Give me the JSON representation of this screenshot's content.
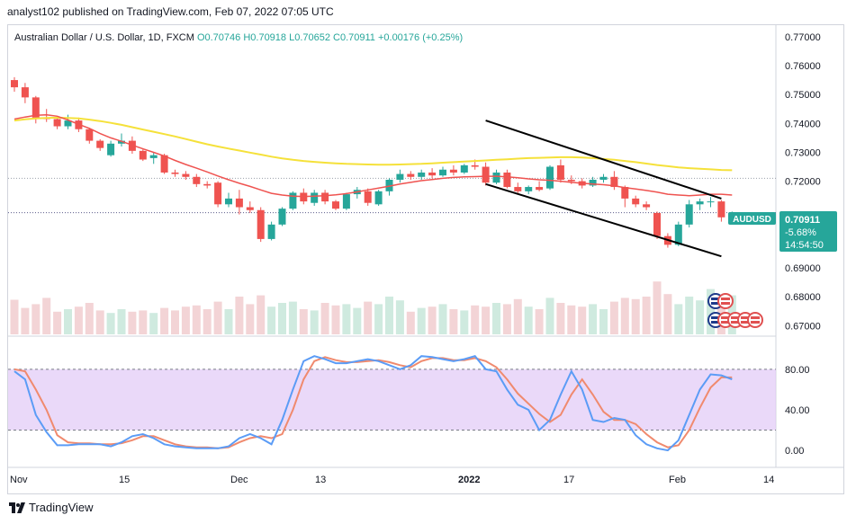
{
  "header": {
    "published": "analyst102 published on TradingView.com, Feb 07, 2022 07:05 UTC",
    "symbol": "Australian Dollar / U.S. Dollar, 1D, FXCM",
    "ohlc": "O0.70746  H0.70918  L0.70652  C0.70911  +0.00176  (+0.25%)"
  },
  "price_label": {
    "ticker": "AUDUSD",
    "price": "0.70911",
    "change": "-5.68%",
    "countdown": "14:54:50"
  },
  "footer": {
    "brand": "TradingView"
  },
  "colors": {
    "up": "#26a69a",
    "down": "#ef5350",
    "ma_fast": "#ef5350",
    "ma_slow": "#f5e13a",
    "stoch_k": "#5b9cf6",
    "stoch_d": "#f08a6e",
    "band": "#e1c9f7"
  },
  "chart_data": [
    {
      "type": "candlestick",
      "title": "",
      "x_ticks": [
        "Nov",
        "15",
        "Dec",
        "13",
        "2022",
        "17",
        "Feb",
        "14"
      ],
      "y_ticks": [
        "0.77000",
        "0.76000",
        "0.75000",
        "0.74000",
        "0.73000",
        "0.72000",
        "0.69000",
        "0.68000",
        "0.67000"
      ],
      "ylim": [
        0.667,
        0.774
      ],
      "candles": [
        [
          0.755,
          0.756,
          0.751,
          0.7525
        ],
        [
          0.7525,
          0.754,
          0.747,
          0.749
        ],
        [
          0.749,
          0.7495,
          0.74,
          0.742
        ],
        [
          0.742,
          0.745,
          0.7405,
          0.7415
        ],
        [
          0.7415,
          0.742,
          0.738,
          0.739
        ],
        [
          0.739,
          0.743,
          0.738,
          0.741
        ],
        [
          0.741,
          0.742,
          0.737,
          0.738
        ],
        [
          0.738,
          0.7385,
          0.733,
          0.734
        ],
        [
          0.734,
          0.7345,
          0.7305,
          0.7315
        ],
        [
          0.729,
          0.734,
          0.7285,
          0.733
        ],
        [
          0.733,
          0.7365,
          0.732,
          0.734
        ],
        [
          0.734,
          0.7355,
          0.7295,
          0.7305
        ],
        [
          0.7305,
          0.731,
          0.727,
          0.7275
        ],
        [
          0.728,
          0.73,
          0.726,
          0.729
        ],
        [
          0.729,
          0.7295,
          0.7225,
          0.723
        ],
        [
          0.723,
          0.724,
          0.7215,
          0.7225
        ],
        [
          0.7225,
          0.7235,
          0.7205,
          0.7215
        ],
        [
          0.7215,
          0.7225,
          0.718,
          0.719
        ],
        [
          0.719,
          0.72,
          0.7175,
          0.7185
        ],
        [
          0.7195,
          0.72,
          0.711,
          0.712
        ],
        [
          0.712,
          0.716,
          0.711,
          0.714
        ],
        [
          0.714,
          0.717,
          0.7085,
          0.711
        ],
        [
          0.711,
          0.713,
          0.709,
          0.71
        ],
        [
          0.71,
          0.711,
          0.699,
          0.7
        ],
        [
          0.7,
          0.706,
          0.6995,
          0.705
        ],
        [
          0.705,
          0.711,
          0.7045,
          0.7105
        ],
        [
          0.7105,
          0.7165,
          0.71,
          0.716
        ],
        [
          0.716,
          0.7175,
          0.712,
          0.713
        ],
        [
          0.7125,
          0.717,
          0.7115,
          0.716
        ],
        [
          0.716,
          0.717,
          0.712,
          0.713
        ],
        [
          0.713,
          0.7135,
          0.71,
          0.7105
        ],
        [
          0.7105,
          0.716,
          0.71,
          0.7155
        ],
        [
          0.7155,
          0.718,
          0.714,
          0.717
        ],
        [
          0.7165,
          0.7175,
          0.7115,
          0.7125
        ],
        [
          0.712,
          0.717,
          0.7115,
          0.7165
        ],
        [
          0.7165,
          0.721,
          0.715,
          0.7205
        ],
        [
          0.7205,
          0.724,
          0.7195,
          0.7225
        ],
        [
          0.7225,
          0.7235,
          0.7205,
          0.7215
        ],
        [
          0.7215,
          0.724,
          0.7205,
          0.723
        ],
        [
          0.723,
          0.7245,
          0.721,
          0.722
        ],
        [
          0.722,
          0.725,
          0.7215,
          0.724
        ],
        [
          0.724,
          0.7255,
          0.722,
          0.723
        ],
        [
          0.723,
          0.726,
          0.7225,
          0.7255
        ],
        [
          0.7255,
          0.7275,
          0.724,
          0.725
        ],
        [
          0.725,
          0.7265,
          0.7185,
          0.7195
        ],
        [
          0.7195,
          0.724,
          0.719,
          0.723
        ],
        [
          0.723,
          0.724,
          0.7175,
          0.718
        ],
        [
          0.718,
          0.7195,
          0.7155,
          0.7165
        ],
        [
          0.7165,
          0.7185,
          0.7155,
          0.718
        ],
        [
          0.718,
          0.72,
          0.7165,
          0.717
        ],
        [
          0.7175,
          0.7255,
          0.717,
          0.725
        ],
        [
          0.7255,
          0.7275,
          0.7195,
          0.7205
        ],
        [
          0.7205,
          0.722,
          0.719,
          0.72
        ],
        [
          0.72,
          0.721,
          0.7175,
          0.7185
        ],
        [
          0.7185,
          0.7215,
          0.718,
          0.7205
        ],
        [
          0.7205,
          0.7225,
          0.7195,
          0.7215
        ],
        [
          0.7215,
          0.7235,
          0.717,
          0.718
        ],
        [
          0.718,
          0.7185,
          0.711,
          0.714
        ],
        [
          0.714,
          0.715,
          0.711,
          0.712
        ],
        [
          0.712,
          0.713,
          0.71,
          0.711
        ],
        [
          0.709,
          0.7095,
          0.7,
          0.701
        ],
        [
          0.701,
          0.702,
          0.697,
          0.698
        ],
        [
          0.698,
          0.706,
          0.6975,
          0.705
        ],
        [
          0.705,
          0.7135,
          0.704,
          0.712
        ],
        [
          0.712,
          0.714,
          0.71,
          0.713
        ],
        [
          0.713,
          0.7145,
          0.711,
          0.713
        ],
        [
          0.713,
          0.7135,
          0.706,
          0.7075
        ],
        [
          0.7075,
          0.7095,
          0.7065,
          0.7091
        ]
      ],
      "volume": [
        55,
        42,
        48,
        58,
        36,
        40,
        44,
        50,
        38,
        34,
        40,
        36,
        38,
        34,
        42,
        38,
        44,
        46,
        40,
        52,
        40,
        60,
        48,
        62,
        44,
        50,
        52,
        40,
        38,
        50,
        46,
        48,
        42,
        52,
        48,
        60,
        54,
        36,
        42,
        44,
        48,
        40,
        38,
        46,
        44,
        50,
        48,
        56,
        44,
        40,
        58,
        50,
        46,
        44,
        48,
        40,
        52,
        58,
        56,
        60,
        84,
        64,
        48,
        60,
        54,
        72,
        58,
        62
      ],
      "ma_fast": [
        0.7415,
        0.7422,
        0.7428,
        0.743,
        0.7425,
        0.7412,
        0.7397,
        0.7383,
        0.7365,
        0.735,
        0.7338,
        0.7325,
        0.7312,
        0.73,
        0.7287,
        0.7272,
        0.7258,
        0.7245,
        0.7232,
        0.7218,
        0.7205,
        0.7193,
        0.7182,
        0.717,
        0.7158,
        0.7152,
        0.7148,
        0.7147,
        0.7148,
        0.715,
        0.7153,
        0.7157,
        0.7163,
        0.717,
        0.7176,
        0.7183,
        0.719,
        0.7196,
        0.7202,
        0.7206,
        0.721,
        0.7213,
        0.7215,
        0.7216,
        0.7217,
        0.7217,
        0.7215,
        0.7212,
        0.7208,
        0.7205,
        0.7203,
        0.72,
        0.7196,
        0.7193,
        0.719,
        0.7188,
        0.7184,
        0.7178,
        0.7173,
        0.7168,
        0.7162,
        0.7155,
        0.7152,
        0.715,
        0.7152,
        0.7155,
        0.7155,
        0.7152
      ],
      "ma_slow": [
        0.741,
        0.7414,
        0.7417,
        0.7419,
        0.742,
        0.7419,
        0.7417,
        0.7413,
        0.7408,
        0.7402,
        0.7395,
        0.7387,
        0.7379,
        0.7371,
        0.7363,
        0.7355,
        0.7346,
        0.7337,
        0.7328,
        0.732,
        0.7313,
        0.7306,
        0.7299,
        0.7292,
        0.7285,
        0.7279,
        0.7274,
        0.727,
        0.7267,
        0.7264,
        0.7262,
        0.726,
        0.7259,
        0.7258,
        0.7257,
        0.7257,
        0.7258,
        0.7259,
        0.726,
        0.7262,
        0.7264,
        0.7266,
        0.7268,
        0.727,
        0.7272,
        0.7274,
        0.7276,
        0.7278,
        0.728,
        0.7281,
        0.7282,
        0.7283,
        0.7283,
        0.7282,
        0.728,
        0.7277,
        0.7274,
        0.727,
        0.7266,
        0.7261,
        0.7256,
        0.7252,
        0.7248,
        0.7245,
        0.7243,
        0.7241,
        0.7239,
        0.7238
      ],
      "channel": {
        "upper": [
          [
            0.741,
            44
          ],
          [
            0.714,
            66
          ]
        ],
        "lower": [
          [
            0.719,
            44
          ],
          [
            0.694,
            66
          ]
        ]
      },
      "dotted_levels": [
        0.721,
        0.7091
      ]
    },
    {
      "type": "line",
      "title": "",
      "y_ticks": [
        "80.00",
        "40.00",
        "0.00"
      ],
      "ylim": [
        -15,
        110
      ],
      "band": [
        20,
        80
      ],
      "series": [
        {
          "values": [
            78,
            70,
            35,
            18,
            5,
            5,
            6,
            6,
            6,
            4,
            8,
            14,
            16,
            12,
            6,
            4,
            3,
            2,
            2,
            2,
            4,
            12,
            16,
            12,
            6,
            30,
            60,
            88,
            93,
            90,
            86,
            86,
            88,
            90,
            88,
            84,
            80,
            84,
            93,
            92,
            90,
            88,
            90,
            93,
            80,
            78,
            60,
            45,
            40,
            20,
            30,
            55,
            78,
            60,
            30,
            28,
            32,
            30,
            15,
            6,
            2,
            0,
            10,
            35,
            60,
            75,
            74,
            70
          ]
        },
        {
          "values": [
            80,
            78,
            60,
            40,
            15,
            8,
            7,
            7,
            6,
            6,
            7,
            10,
            14,
            14,
            10,
            6,
            4,
            3,
            3,
            2,
            3,
            8,
            12,
            14,
            12,
            16,
            40,
            70,
            88,
            92,
            89,
            87,
            87,
            88,
            89,
            87,
            84,
            82,
            88,
            91,
            91,
            89,
            89,
            91,
            88,
            82,
            70,
            56,
            46,
            36,
            28,
            35,
            55,
            70,
            55,
            38,
            30,
            30,
            26,
            16,
            8,
            3,
            5,
            20,
            42,
            62,
            72,
            72
          ]
        }
      ]
    }
  ]
}
